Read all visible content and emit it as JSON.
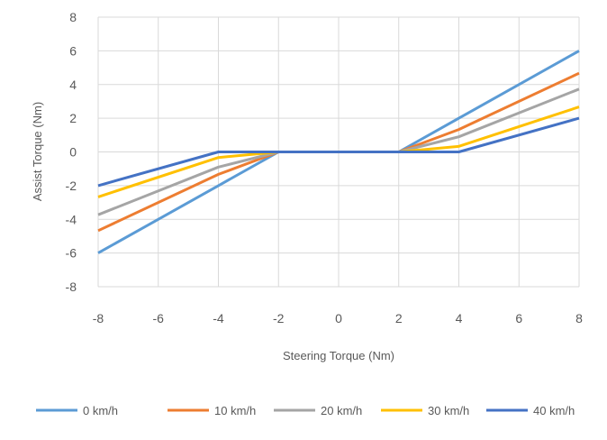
{
  "chart_data": {
    "type": "line",
    "title": "",
    "xlabel": "Steering Torque (Nm)",
    "ylabel": "Assist Torque (Nm)",
    "xlim": [
      -8,
      8
    ],
    "ylim": [
      -8,
      8
    ],
    "xticks": [
      -8,
      -6,
      -4,
      -2,
      0,
      2,
      4,
      6,
      8
    ],
    "yticks": [
      8,
      6,
      4,
      2,
      0,
      -2,
      -4,
      -6,
      -8
    ],
    "grid": true,
    "legend_position": "bottom",
    "x": [
      -8,
      -4,
      -2,
      2,
      4,
      8
    ],
    "series": [
      {
        "name": "0 km/h",
        "color": "#5B9BD5",
        "values": [
          -6,
          -2,
          0,
          0,
          2,
          6
        ]
      },
      {
        "name": "10 km/h",
        "color": "#ED7D31",
        "values": [
          -4.67,
          -1.33,
          0,
          0,
          1.33,
          4.67
        ]
      },
      {
        "name": "20 km/h",
        "color": "#A5A5A5",
        "values": [
          -3.73,
          -0.9,
          0,
          0,
          0.9,
          3.73
        ]
      },
      {
        "name": "30 km/h",
        "color": "#FFC000",
        "values": [
          -2.67,
          -0.33,
          0,
          0,
          0.33,
          2.67
        ]
      },
      {
        "name": "40 km/h",
        "color": "#4472C4",
        "values": [
          -2,
          0,
          0,
          0,
          0,
          2
        ]
      }
    ]
  }
}
